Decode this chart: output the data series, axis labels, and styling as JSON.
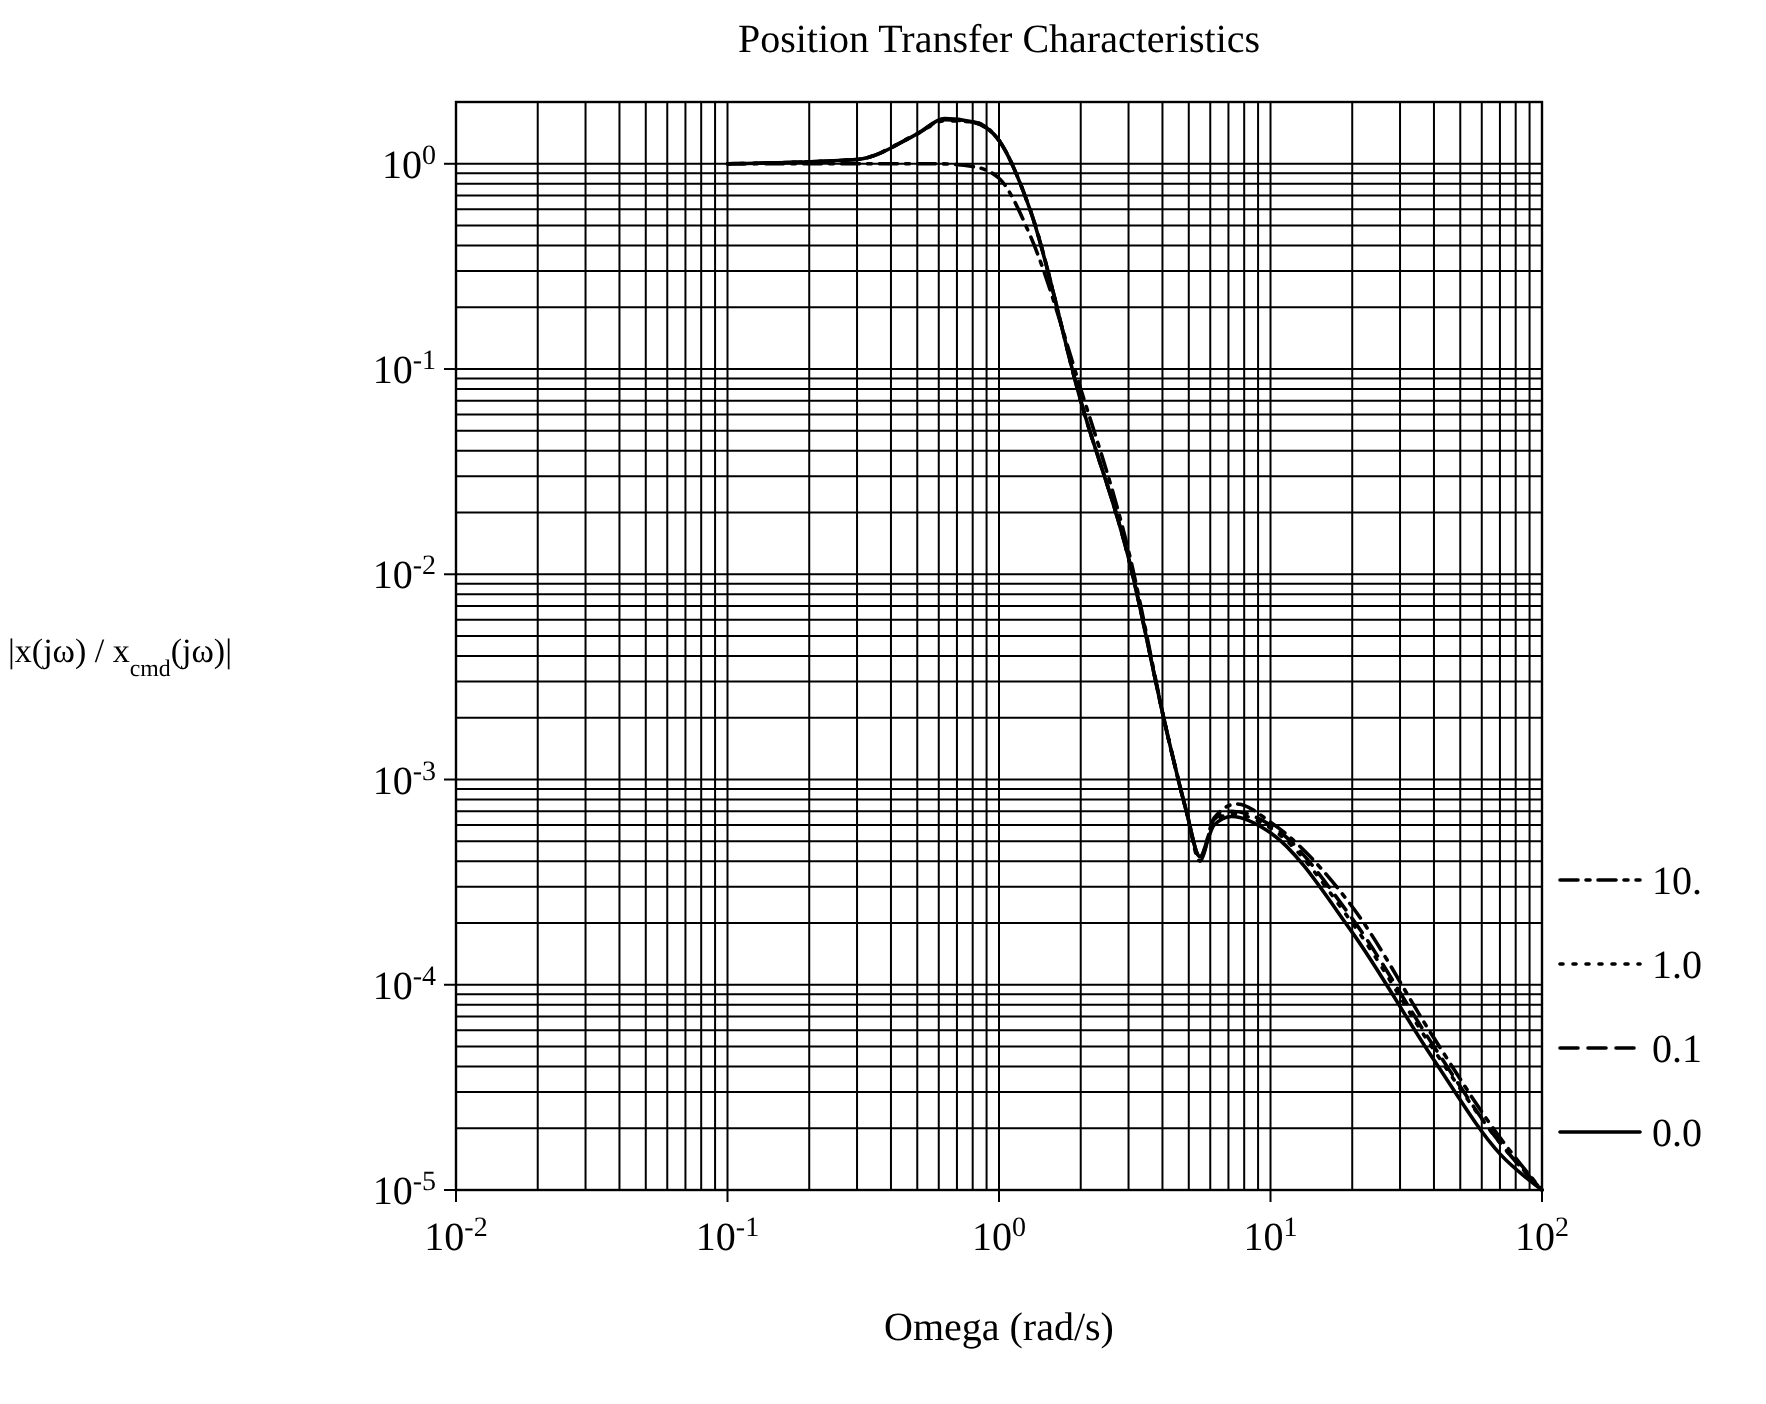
{
  "chart_data": {
    "type": "line",
    "title": "Position Transfer Characteristics",
    "xlabel": "Omega (rad/s)",
    "ylabel": "|x(jω) / x$_{cmd}$(jω)|",
    "log": "xy",
    "grid": true,
    "legend": "right",
    "xlim": [
      0.01,
      100
    ],
    "ylim": [
      1e-05,
      2
    ],
    "xticks": [
      {
        "value": 0.01,
        "label": "10$^{-2}$"
      },
      {
        "value": 0.1,
        "label": "10$^{-1}$"
      },
      {
        "value": 1,
        "label": "10$^{0}$"
      },
      {
        "value": 10,
        "label": "10$^{1}$"
      },
      {
        "value": 100,
        "label": "10$^{2}$"
      }
    ],
    "yticks": [
      {
        "value": 1e-05,
        "label": "10$^{-5}$"
      },
      {
        "value": 0.0001,
        "label": "10$^{-4}$"
      },
      {
        "value": 0.001,
        "label": "10$^{-3}$"
      },
      {
        "value": 0.01,
        "label": "10$^{-2}$"
      },
      {
        "value": 0.1,
        "label": "10$^{-1}$"
      },
      {
        "value": 1,
        "label": "10$^{0}$"
      }
    ],
    "series": [
      {
        "name": "10.",
        "color": "#000000",
        "line_style": "dashdot",
        "x": [
          0.1,
          0.3,
          0.6,
          0.8,
          1.0,
          1.3,
          2.0,
          3.0,
          4.2,
          4.9,
          5.5,
          6.2,
          7.5,
          10,
          20,
          40,
          70,
          100
        ],
        "values": [
          1.0,
          1.0,
          1.0,
          0.97,
          0.85,
          0.45,
          0.08,
          0.013,
          0.0016,
          0.0007,
          0.0004,
          0.00065,
          0.00076,
          0.00062,
          0.00024,
          5.5e-05,
          1.8e-05,
          1e-05
        ]
      },
      {
        "name": "1.0",
        "color": "#000000",
        "line_style": "dotted",
        "x": [
          0.1,
          0.3,
          0.5,
          0.63,
          0.8,
          1.0,
          1.3,
          2.0,
          3.0,
          4.2,
          4.9,
          5.5,
          6.2,
          7.2,
          10,
          20,
          40,
          70,
          100
        ],
        "values": [
          1.0,
          1.05,
          1.4,
          1.62,
          1.6,
          1.3,
          0.6,
          0.07,
          0.012,
          0.0016,
          0.0007,
          0.00042,
          0.00062,
          0.00068,
          0.00058,
          0.0002,
          4.8e-05,
          1.7e-05,
          1e-05
        ]
      },
      {
        "name": "0.1",
        "color": "#000000",
        "line_style": "dashed",
        "x": [
          0.1,
          0.3,
          0.5,
          0.63,
          0.8,
          1.0,
          1.3,
          2.0,
          3.0,
          4.2,
          4.9,
          5.5,
          6.2,
          7.2,
          10,
          20,
          40,
          70,
          100
        ],
        "values": [
          1.0,
          1.05,
          1.4,
          1.64,
          1.6,
          1.3,
          0.6,
          0.07,
          0.012,
          0.0016,
          0.0007,
          0.00042,
          0.00064,
          0.0007,
          0.0006,
          0.00021,
          5e-05,
          1.7e-05,
          1e-05
        ]
      },
      {
        "name": "0.0",
        "color": "#000000",
        "line_style": "solid",
        "x": [
          0.1,
          0.3,
          0.5,
          0.63,
          0.8,
          1.0,
          1.3,
          2.0,
          3.0,
          4.2,
          4.9,
          5.5,
          6.2,
          7.2,
          10,
          20,
          40,
          70,
          100
        ],
        "values": [
          1.0,
          1.05,
          1.4,
          1.66,
          1.6,
          1.3,
          0.6,
          0.07,
          0.012,
          0.0016,
          0.0007,
          0.00042,
          0.0006,
          0.00066,
          0.00055,
          0.00018,
          4.3e-05,
          1.5e-05,
          1e-05
        ]
      }
    ]
  }
}
